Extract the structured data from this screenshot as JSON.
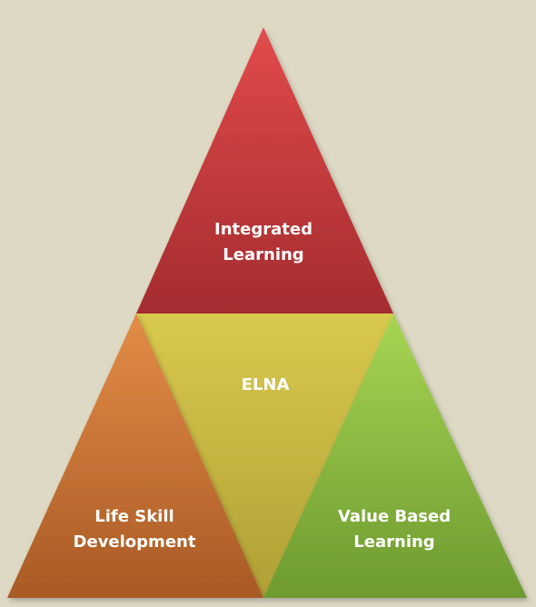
{
  "diagram": {
    "top": {
      "line1": "Integrated",
      "line2": "Learning",
      "color": "#b8363a"
    },
    "center": {
      "label": "ELNA",
      "color": "#cfbc45"
    },
    "left": {
      "line1": "Life Skill",
      "line2": "Development",
      "color": "#c06a2e"
    },
    "right": {
      "line1": "Value Based",
      "line2": "Learning",
      "color": "#7faa3c"
    }
  }
}
